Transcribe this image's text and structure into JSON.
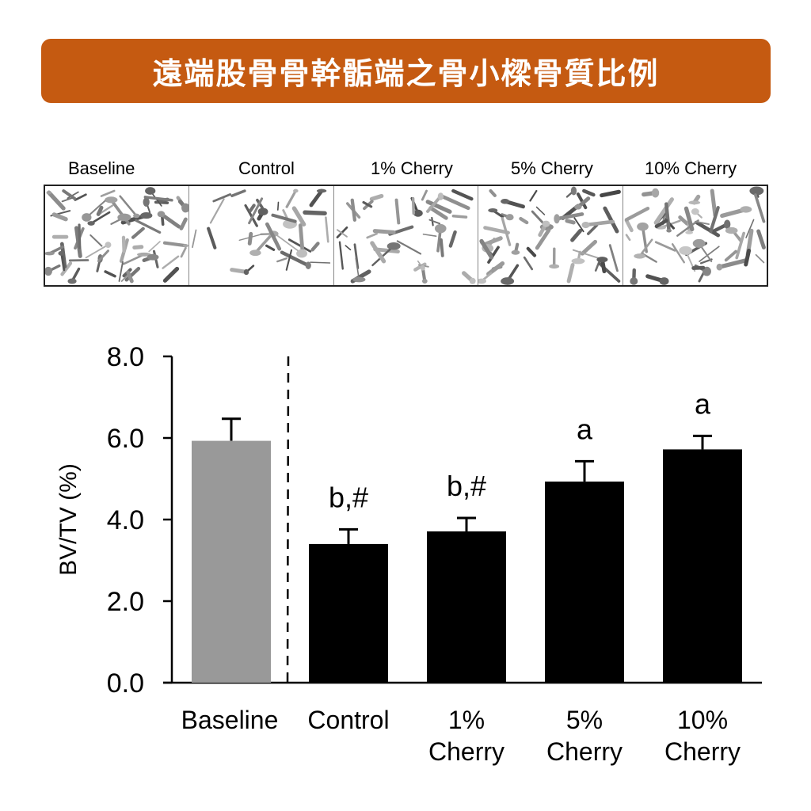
{
  "title": "遠端股骨骨幹骺端之骨小樑骨質比例",
  "images": {
    "labels": [
      "Baseline",
      "Control",
      "1% Cherry",
      "5% Cherry",
      "10% Cherry"
    ],
    "description": "micro-CT 3D reconstructions of trabecular bone"
  },
  "colors": {
    "banner": "#c55a11",
    "baseline_bar": "#999999",
    "treatment_bar": "#000000"
  },
  "chart_data": {
    "type": "bar",
    "title": "",
    "xlabel": "",
    "ylabel": "BV/TV (%)",
    "ylim": [
      0,
      8
    ],
    "yticks": [
      "0.0",
      "2.0",
      "4.0",
      "6.0",
      "8.0"
    ],
    "categories": [
      "Baseline",
      "Control",
      "1% Cherry",
      "5% Cherry",
      "10% Cherry"
    ],
    "category_lines": [
      [
        "Baseline"
      ],
      [
        "Control"
      ],
      [
        "1%",
        "Cherry"
      ],
      [
        "5%",
        "Cherry"
      ],
      [
        "10%",
        "Cherry"
      ]
    ],
    "values": [
      5.93,
      3.4,
      3.71,
      4.93,
      5.72
    ],
    "error_upper": [
      0.54,
      0.36,
      0.33,
      0.5,
      0.33
    ],
    "annotations": [
      "",
      "b,#",
      "b,#",
      "a",
      "a"
    ],
    "bar_colors": [
      "#999999",
      "#000000",
      "#000000",
      "#000000",
      "#000000"
    ],
    "divider": "dashed vertical line between Baseline and Control",
    "grid": false,
    "legend": null
  }
}
